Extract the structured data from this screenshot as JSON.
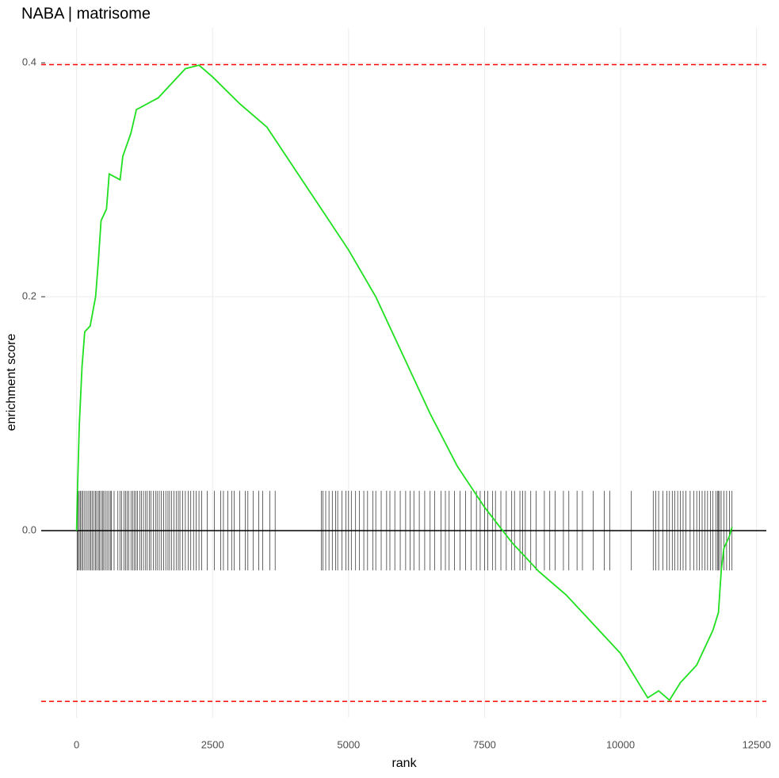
{
  "chart_data": {
    "type": "enrichment",
    "title": "NABA | matrisome",
    "x_label": "rank",
    "y_label": "enrichment score",
    "x": [
      0,
      20,
      50,
      100,
      150,
      250,
      350,
      400,
      450,
      550,
      600,
      800,
      850,
      1000,
      1100,
      1500,
      1700,
      2000,
      2250,
      2500,
      3000,
      3500,
      4000,
      4500,
      5000,
      5500,
      6000,
      6500,
      7000,
      7500,
      8000,
      8500,
      9000,
      9500,
      10000,
      10500,
      10700,
      10900,
      11100,
      11400,
      11700,
      11800,
      11850,
      11900,
      12000,
      12050
    ],
    "values": [
      0,
      0.04,
      0.09,
      0.14,
      0.17,
      0.175,
      0.2,
      0.23,
      0.265,
      0.275,
      0.305,
      0.3,
      0.32,
      0.34,
      0.36,
      0.37,
      0.38,
      0.395,
      0.398,
      0.388,
      0.365,
      0.345,
      0.31,
      0.275,
      0.24,
      0.2,
      0.15,
      0.1,
      0.055,
      0.02,
      -0.01,
      -0.035,
      -0.055,
      -0.08,
      -0.105,
      -0.143,
      -0.137,
      -0.145,
      -0.13,
      -0.115,
      -0.085,
      -0.07,
      -0.035,
      -0.015,
      -0.005,
      0.003
    ],
    "color": "#1fe01f",
    "hits": [
      10,
      30,
      50,
      70,
      95,
      120,
      150,
      180,
      210,
      240,
      265,
      290,
      320,
      345,
      370,
      400,
      420,
      450,
      480,
      500,
      530,
      560,
      590,
      620,
      640,
      690,
      760,
      800,
      830,
      870,
      900,
      930,
      960,
      1000,
      1030,
      1060,
      1090,
      1120,
      1160,
      1190,
      1230,
      1270,
      1300,
      1340,
      1370,
      1410,
      1450,
      1480,
      1520,
      1560,
      1600,
      1640,
      1680,
      1710,
      1750,
      1790,
      1830,
      1870,
      1900,
      1950,
      2000,
      2050,
      2100,
      2150,
      2200,
      2250,
      2300,
      2400,
      2530,
      2650,
      2700,
      2780,
      2850,
      2900,
      3000,
      3100,
      3150,
      3250,
      3350,
      3420,
      3550,
      3650,
      4500,
      4530,
      4580,
      4640,
      4700,
      4760,
      4800,
      4880,
      4950,
      5000,
      5050,
      5130,
      5200,
      5280,
      5350,
      5450,
      5500,
      5600,
      5700,
      5760,
      5850,
      5950,
      6050,
      6130,
      6200,
      6300,
      6400,
      6500,
      6580,
      6700,
      6780,
      6850,
      6950,
      7050,
      7150,
      7250,
      7350,
      7420,
      7500,
      7560,
      7650,
      7700,
      7800,
      7900,
      8000,
      8050,
      8150,
      8200,
      8250,
      8350,
      8450,
      8600,
      8700,
      8800,
      8950,
      9050,
      9200,
      9300,
      9500,
      9700,
      9800,
      10200,
      10600,
      10650,
      10700,
      10780,
      10850,
      10900,
      10950,
      11000,
      11050,
      11100,
      11150,
      11200,
      11280,
      11350,
      11400,
      11450,
      11500,
      11550,
      11600,
      11650,
      11700,
      11750,
      11780,
      11800,
      11820,
      11850,
      11900,
      11950,
      12000,
      12050
    ],
    "rug_range": [
      -0.034,
      0.034
    ],
    "reference_lines": [
      0.3985,
      -0.146
    ],
    "reference_color": "#ff0000",
    "xlim": [
      -650,
      12680
    ],
    "ylim": [
      -0.16,
      0.43
    ],
    "xticks": [
      0,
      2500,
      5000,
      7500,
      10000,
      12500
    ],
    "yticks": [
      {
        "value": 0,
        "label": "0.0"
      },
      0.2,
      0.4
    ],
    "grid": true
  }
}
